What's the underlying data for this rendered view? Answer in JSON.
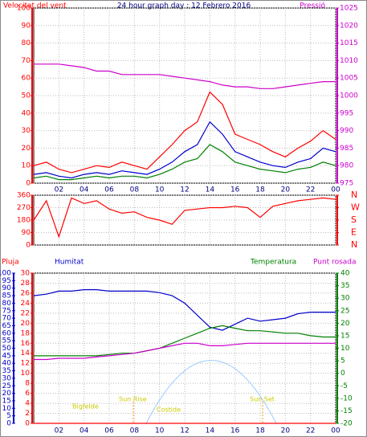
{
  "chart_data": [
    {
      "type": "line",
      "title": "24 hour graph day : 12 Febrero 2016",
      "y_label": "Velocitat del vent",
      "y2_label": "Pressió",
      "x": [
        0,
        1,
        2,
        3,
        4,
        5,
        6,
        7,
        8,
        9,
        10,
        11,
        12,
        13,
        14,
        15,
        16,
        17,
        18,
        19,
        20,
        21,
        22,
        23,
        24
      ],
      "xlim": [
        0,
        24
      ],
      "xticks": [
        {
          "value": 2,
          "label": "02"
        },
        {
          "value": 4,
          "label": "04"
        },
        {
          "value": 6,
          "label": "06"
        },
        {
          "value": 8,
          "label": "08"
        },
        10,
        12,
        14,
        16,
        18,
        20,
        22,
        {
          "value": 24,
          "label": "00"
        }
      ],
      "ylim": [
        0,
        100
      ],
      "yticks": [
        0,
        10,
        20,
        30,
        40,
        50,
        60,
        70,
        80,
        90,
        100
      ],
      "y2lim": [
        975,
        1025
      ],
      "y2ticks": [
        975,
        980,
        985,
        990,
        995,
        1000,
        1005,
        1010,
        1015,
        1020,
        1025
      ],
      "grid": true,
      "series": [
        {
          "color": "#ff0000",
          "values": [
            10,
            12,
            8,
            6,
            8,
            10,
            9,
            12,
            10,
            8,
            15,
            22,
            30,
            35,
            52,
            45,
            28,
            25,
            22,
            18,
            15,
            20,
            24,
            30,
            25
          ]
        },
        {
          "color": "#0000cc",
          "values": [
            5,
            6,
            4,
            3,
            5,
            6,
            5,
            7,
            6,
            5,
            8,
            12,
            18,
            22,
            35,
            28,
            18,
            15,
            12,
            10,
            9,
            12,
            14,
            20,
            18
          ]
        },
        {
          "color": "#008000",
          "values": [
            3,
            4,
            2,
            2,
            3,
            4,
            3,
            4,
            4,
            3,
            5,
            8,
            12,
            14,
            22,
            18,
            12,
            10,
            8,
            7,
            6,
            8,
            9,
            12,
            10
          ]
        },
        {
          "color": "#cc00cc",
          "axis": "y2",
          "values": [
            1009,
            1009,
            1009,
            1008.5,
            1008,
            1007,
            1007,
            1006,
            1006,
            1006,
            1006,
            1005.5,
            1005,
            1004.5,
            1004,
            1003,
            1002.5,
            1002.5,
            1002,
            1002,
            1002.5,
            1003,
            1003.5,
            1004,
            1004
          ]
        }
      ]
    },
    {
      "type": "line",
      "x": [
        0,
        1,
        2,
        3,
        4,
        5,
        6,
        7,
        8,
        9,
        10,
        11,
        12,
        13,
        14,
        15,
        16,
        17,
        18,
        19,
        20,
        21,
        22,
        23,
        24
      ],
      "xlim": [
        0,
        24
      ],
      "xticks": [
        {
          "value": 2,
          "label": "02"
        },
        {
          "value": 4,
          "label": "04"
        },
        {
          "value": 6,
          "label": "06"
        },
        {
          "value": 8,
          "label": "08"
        },
        10,
        12,
        14,
        16,
        18,
        20,
        22,
        {
          "value": 24,
          "label": "00"
        }
      ],
      "ylim": [
        0,
        360
      ],
      "yticks": [
        0,
        90,
        180,
        270,
        360
      ],
      "y2lim": [
        0,
        360
      ],
      "y2ticks": [
        {
          "value": 0,
          "label": "N"
        },
        {
          "value": 90,
          "label": "E"
        },
        {
          "value": 180,
          "label": "S"
        },
        {
          "value": 270,
          "label": "W"
        },
        {
          "value": 360,
          "label": "N"
        }
      ],
      "grid": true,
      "series": [
        {
          "color": "#ff0000",
          "values": [
            180,
            320,
            60,
            340,
            300,
            320,
            260,
            230,
            240,
            200,
            180,
            150,
            250,
            260,
            270,
            270,
            280,
            270,
            200,
            280,
            300,
            320,
            330,
            340,
            330
          ]
        }
      ]
    },
    {
      "type": "line",
      "x": [
        0,
        1,
        2,
        3,
        4,
        5,
        6,
        7,
        8,
        9,
        10,
        11,
        12,
        13,
        14,
        15,
        16,
        17,
        18,
        19,
        20,
        21,
        22,
        23,
        24
      ],
      "xlim": [
        0,
        24
      ],
      "xticks": [
        {
          "value": 2,
          "label": "02"
        },
        {
          "value": 4,
          "label": "04"
        },
        {
          "value": 6,
          "label": "06"
        },
        {
          "value": 8,
          "label": "08"
        },
        10,
        12,
        14,
        16,
        18,
        20,
        22,
        {
          "value": 24,
          "label": "00"
        }
      ],
      "ylim": [
        0,
        30
      ],
      "yticks": [
        0,
        2,
        4,
        6,
        8,
        10,
        12,
        14,
        16,
        18,
        20,
        22,
        24,
        26,
        28,
        30
      ],
      "y2lim": [
        -20,
        40
      ],
      "y2ticks": [
        -20,
        -15,
        -10,
        -5,
        0,
        5,
        10,
        15,
        20,
        25,
        30,
        35,
        40
      ],
      "y3lim": [
        0,
        100
      ],
      "y3ticks": [
        0,
        5,
        10,
        15,
        20,
        25,
        30,
        35,
        40,
        45,
        50,
        55,
        60,
        65,
        70,
        75,
        80,
        85,
        90,
        95,
        100
      ],
      "grid": true,
      "series": [
        {
          "name": "Pluja",
          "color": "#ff0000",
          "values": [
            0,
            0,
            0,
            0,
            0,
            0,
            0,
            0,
            0,
            0,
            0,
            0,
            0,
            0,
            0,
            0,
            0,
            0,
            0,
            0,
            0,
            0,
            0,
            0,
            0
          ]
        },
        {
          "name": "Humitat",
          "color": "#0000cc",
          "axis": "y3",
          "values": [
            85,
            86,
            88,
            88,
            89,
            89,
            88,
            88,
            88,
            88,
            87,
            85,
            80,
            72,
            64,
            62,
            66,
            70,
            68,
            69,
            70,
            73,
            74,
            74,
            74
          ]
        },
        {
          "name": "Temperatura",
          "color": "#008000",
          "axis": "y2",
          "values": [
            7,
            7,
            7,
            7,
            7,
            7,
            7.5,
            8,
            8,
            9,
            10,
            12,
            14,
            16,
            18,
            19,
            18,
            17,
            17,
            16.5,
            16,
            16,
            15,
            14.5,
            14.5
          ]
        },
        {
          "name": "Punt rosada",
          "color": "#cc00cc",
          "axis": "y2",
          "values": [
            5.5,
            5.5,
            6,
            6,
            6,
            6.5,
            7,
            7.5,
            8,
            9,
            10,
            11,
            12,
            12,
            11,
            11,
            11.5,
            12,
            12,
            12,
            12,
            12,
            12,
            12,
            12
          ]
        }
      ],
      "annotations": [
        "Bigfelde",
        "Sun Rise",
        "Costide",
        "Sun Set"
      ]
    }
  ]
}
